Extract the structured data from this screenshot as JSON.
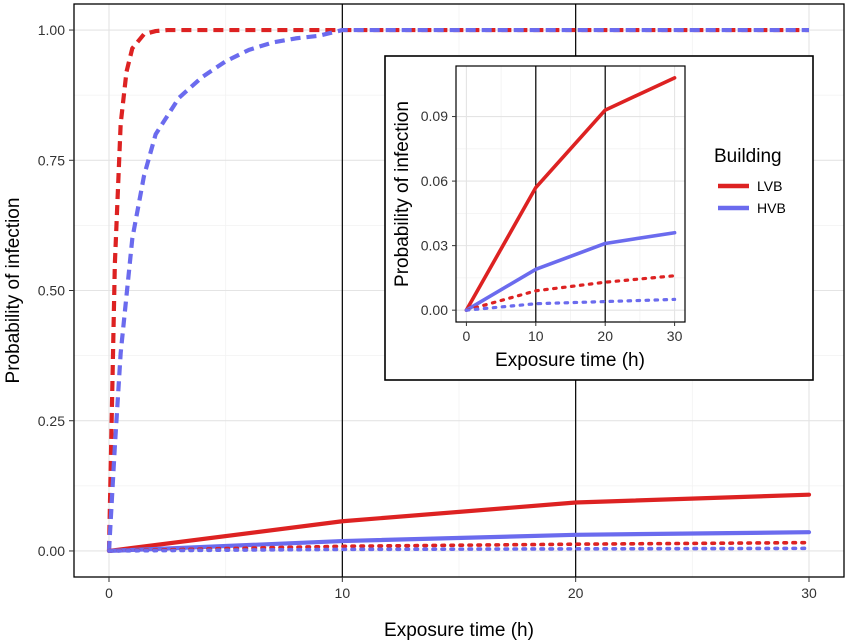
{
  "chart_data": [
    {
      "type": "line",
      "panel": "main",
      "xlabel": "Exposure time (h)",
      "ylabel": "Probability of infection",
      "xlim": [
        -1.5,
        31.5
      ],
      "ylim": [
        -0.05,
        1.05
      ],
      "x_ticks": [
        0,
        10,
        20,
        30
      ],
      "x_tick_labels": [
        "0",
        "10",
        "20",
        "30"
      ],
      "y_ticks": [
        0,
        0.25,
        0.5,
        0.75,
        1.0
      ],
      "y_tick_labels": [
        "0.00",
        "0.25",
        "0.50",
        "0.75",
        "1.00"
      ],
      "grid": true,
      "vertical_lines": [
        10,
        20
      ],
      "series": [
        {
          "name": "LVB",
          "style": "dashed",
          "color": "#dd2222",
          "x": [
            0,
            0.25,
            0.5,
            0.75,
            1,
            1.5,
            2,
            2.5,
            3,
            3.5,
            4,
            5,
            10,
            20,
            30
          ],
          "y": [
            0,
            0.55,
            0.82,
            0.92,
            0.965,
            0.992,
            0.998,
            1.0,
            1.0,
            1.0,
            1.0,
            1.0,
            1.0,
            1.0,
            1.0
          ]
        },
        {
          "name": "HVB",
          "style": "dashed",
          "color": "#6b6bee",
          "x": [
            0,
            0.25,
            0.5,
            1,
            1.5,
            2,
            3,
            4,
            5,
            6,
            7,
            8,
            9,
            10,
            20,
            30
          ],
          "y": [
            0,
            0.2,
            0.38,
            0.6,
            0.72,
            0.8,
            0.87,
            0.91,
            0.94,
            0.962,
            0.976,
            0.984,
            0.989,
            1.0,
            1.0,
            1.0
          ]
        },
        {
          "name": "LVB",
          "style": "solid",
          "color": "#dd2222",
          "x": [
            0,
            10,
            20,
            30
          ],
          "y": [
            0,
            0.057,
            0.093,
            0.108
          ]
        },
        {
          "name": "HVB",
          "style": "solid",
          "color": "#6b6bee",
          "x": [
            0,
            10,
            20,
            30
          ],
          "y": [
            0,
            0.019,
            0.031,
            0.036
          ]
        },
        {
          "name": "LVB",
          "style": "dotted",
          "color": "#dd2222",
          "x": [
            0,
            10,
            20,
            30
          ],
          "y": [
            0,
            0.009,
            0.013,
            0.016
          ]
        },
        {
          "name": "HVB",
          "style": "dotted",
          "color": "#6b6bee",
          "x": [
            0,
            10,
            20,
            30
          ],
          "y": [
            0,
            0.003,
            0.004,
            0.005
          ]
        }
      ]
    },
    {
      "type": "line",
      "panel": "inset",
      "xlabel": "Exposure time (h)",
      "ylabel": "Probability of infection",
      "xlim": [
        -1.5,
        31.5
      ],
      "ylim": [
        -0.0055,
        0.1135
      ],
      "x_ticks": [
        0,
        10,
        20,
        30
      ],
      "x_tick_labels": [
        "0",
        "10",
        "20",
        "30"
      ],
      "y_ticks": [
        0,
        0.03,
        0.06,
        0.09
      ],
      "y_tick_labels": [
        "0.00",
        "0.03",
        "0.06",
        "0.09"
      ],
      "grid": true,
      "vertical_lines": [
        10,
        20
      ],
      "legend": {
        "title": "Building",
        "position": "right",
        "entries": [
          {
            "label": "LVB",
            "color": "#dd2222"
          },
          {
            "label": "HVB",
            "color": "#6b6bee"
          }
        ]
      },
      "series": [
        {
          "name": "LVB",
          "style": "solid",
          "color": "#dd2222",
          "x": [
            0,
            10,
            20,
            30
          ],
          "y": [
            0,
            0.057,
            0.093,
            0.108
          ]
        },
        {
          "name": "HVB",
          "style": "solid",
          "color": "#6b6bee",
          "x": [
            0,
            10,
            20,
            30
          ],
          "y": [
            0,
            0.019,
            0.031,
            0.036
          ]
        },
        {
          "name": "LVB",
          "style": "dotted",
          "color": "#dd2222",
          "x": [
            0,
            10,
            20,
            30
          ],
          "y": [
            0,
            0.009,
            0.013,
            0.016
          ]
        },
        {
          "name": "HVB",
          "style": "dotted",
          "color": "#6b6bee",
          "x": [
            0,
            10,
            20,
            30
          ],
          "y": [
            0,
            0.003,
            0.004,
            0.005
          ]
        }
      ]
    }
  ]
}
